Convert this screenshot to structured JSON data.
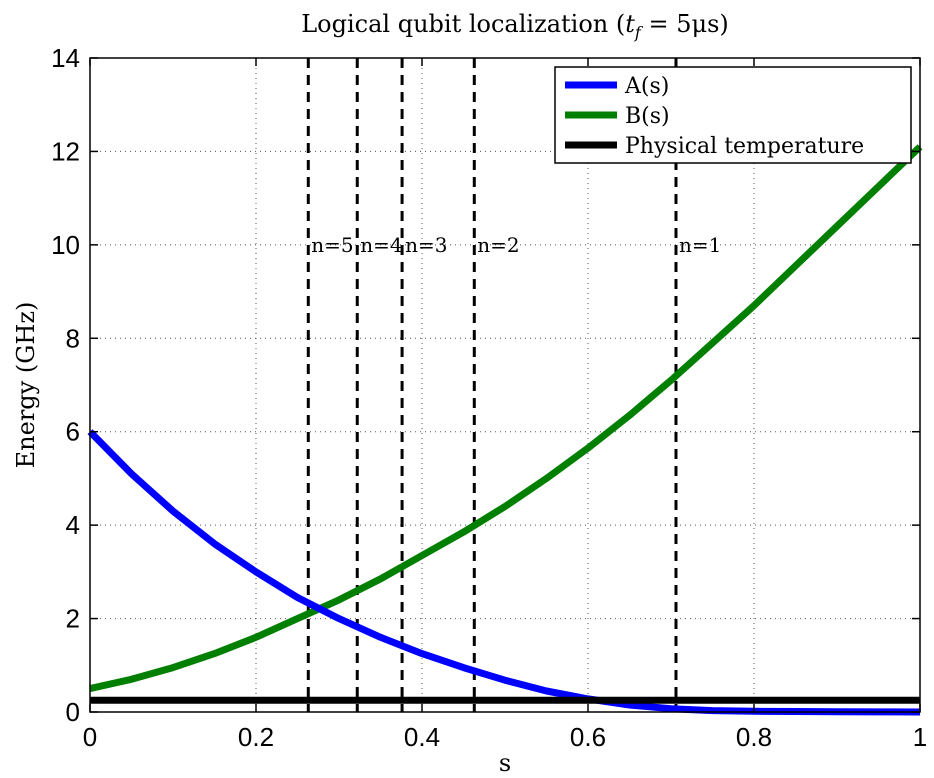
{
  "chart_data": {
    "type": "line",
    "title": "Logical qubit localization (t_f = 5μs)",
    "title_parts": {
      "prefix": "Logical qubit localization (",
      "t": "t",
      "sub": "f",
      "suffix": " = 5μs)"
    },
    "xlabel": "s",
    "ylabel": "Energy (GHz)",
    "xlim": [
      0,
      1
    ],
    "ylim": [
      0,
      14
    ],
    "x_ticks": [
      0,
      0.2,
      0.4,
      0.6,
      0.8,
      1
    ],
    "x_tick_labels": [
      "0",
      "0.2",
      "0.4",
      "0.6",
      "0.8",
      "1"
    ],
    "y_ticks": [
      0,
      2,
      4,
      6,
      8,
      10,
      12,
      14
    ],
    "y_tick_labels": [
      "0",
      "2",
      "4",
      "6",
      "8",
      "10",
      "12",
      "14"
    ],
    "grid": true,
    "legend_position": "top-right",
    "series": [
      {
        "name": "A(s)",
        "color": "#0000ff",
        "x": [
          0,
          0.05,
          0.1,
          0.15,
          0.2,
          0.25,
          0.3,
          0.35,
          0.4,
          0.45,
          0.5,
          0.55,
          0.6,
          0.65,
          0.7,
          0.75,
          0.8,
          0.85,
          0.9,
          0.95,
          1
        ],
        "y": [
          6.0,
          5.1,
          4.3,
          3.6,
          3.0,
          2.45,
          2.0,
          1.6,
          1.25,
          0.95,
          0.68,
          0.45,
          0.28,
          0.15,
          0.07,
          0.03,
          0.015,
          0.01,
          0.005,
          0.002,
          0.0
        ]
      },
      {
        "name": "B(s)",
        "color": "#007f00",
        "x": [
          0,
          0.05,
          0.1,
          0.15,
          0.2,
          0.25,
          0.3,
          0.35,
          0.4,
          0.45,
          0.5,
          0.55,
          0.6,
          0.65,
          0.7,
          0.75,
          0.8,
          0.85,
          0.9,
          0.95,
          1
        ],
        "y": [
          0.5,
          0.7,
          0.95,
          1.25,
          1.6,
          2.0,
          2.4,
          2.85,
          3.35,
          3.85,
          4.4,
          5.0,
          5.65,
          6.35,
          7.1,
          7.9,
          8.7,
          9.55,
          10.4,
          11.25,
          12.1
        ]
      },
      {
        "name": "Physical temperature",
        "color": "#000000",
        "x": [
          0,
          1
        ],
        "y": [
          0.25,
          0.25
        ]
      }
    ],
    "vertical_markers": [
      {
        "label": "n=5",
        "x": 0.263
      },
      {
        "label": "n=4",
        "x": 0.322
      },
      {
        "label": "n=3",
        "x": 0.376
      },
      {
        "label": "n=2",
        "x": 0.463
      },
      {
        "label": "n=1",
        "x": 0.706
      }
    ],
    "marker_label_y": 10
  }
}
